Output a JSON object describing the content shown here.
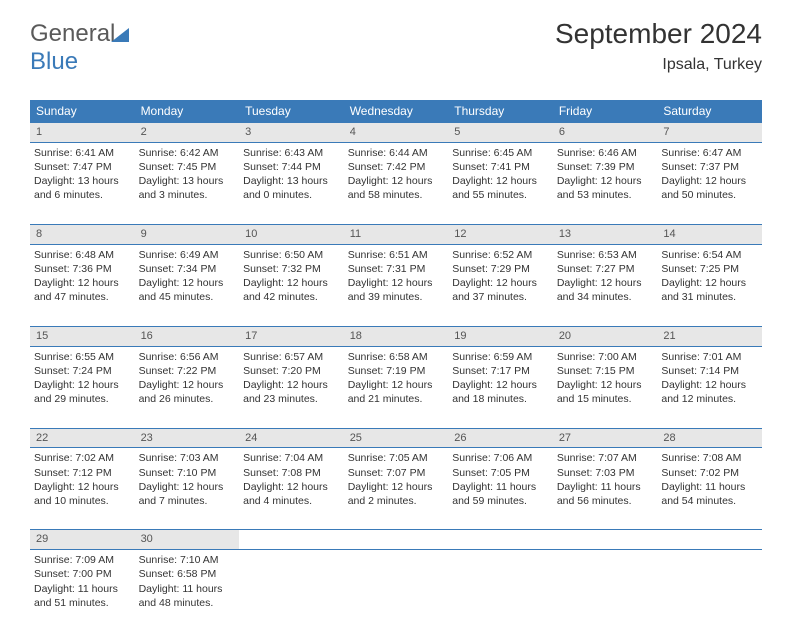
{
  "logo": {
    "part1": "General",
    "part2": "Blue"
  },
  "header": {
    "title": "September 2024",
    "location": "Ipsala, Turkey"
  },
  "colors": {
    "header_bg": "#3a7ab8",
    "header_text": "#ffffff",
    "daynum_bg": "#e7e7e7",
    "text": "#333333",
    "border": "#3a7ab8"
  },
  "fonts": {
    "title_size": 28,
    "location_size": 16,
    "th_size": 12,
    "cell_size": 10.5
  },
  "weekdays": [
    "Sunday",
    "Monday",
    "Tuesday",
    "Wednesday",
    "Thursday",
    "Friday",
    "Saturday"
  ],
  "weeks": [
    {
      "nums": [
        "1",
        "2",
        "3",
        "4",
        "5",
        "6",
        "7"
      ],
      "cells": [
        {
          "sunrise": "Sunrise: 6:41 AM",
          "sunset": "Sunset: 7:47 PM",
          "daylight": "Daylight: 13 hours and 6 minutes."
        },
        {
          "sunrise": "Sunrise: 6:42 AM",
          "sunset": "Sunset: 7:45 PM",
          "daylight": "Daylight: 13 hours and 3 minutes."
        },
        {
          "sunrise": "Sunrise: 6:43 AM",
          "sunset": "Sunset: 7:44 PM",
          "daylight": "Daylight: 13 hours and 0 minutes."
        },
        {
          "sunrise": "Sunrise: 6:44 AM",
          "sunset": "Sunset: 7:42 PM",
          "daylight": "Daylight: 12 hours and 58 minutes."
        },
        {
          "sunrise": "Sunrise: 6:45 AM",
          "sunset": "Sunset: 7:41 PM",
          "daylight": "Daylight: 12 hours and 55 minutes."
        },
        {
          "sunrise": "Sunrise: 6:46 AM",
          "sunset": "Sunset: 7:39 PM",
          "daylight": "Daylight: 12 hours and 53 minutes."
        },
        {
          "sunrise": "Sunrise: 6:47 AM",
          "sunset": "Sunset: 7:37 PM",
          "daylight": "Daylight: 12 hours and 50 minutes."
        }
      ]
    },
    {
      "nums": [
        "8",
        "9",
        "10",
        "11",
        "12",
        "13",
        "14"
      ],
      "cells": [
        {
          "sunrise": "Sunrise: 6:48 AM",
          "sunset": "Sunset: 7:36 PM",
          "daylight": "Daylight: 12 hours and 47 minutes."
        },
        {
          "sunrise": "Sunrise: 6:49 AM",
          "sunset": "Sunset: 7:34 PM",
          "daylight": "Daylight: 12 hours and 45 minutes."
        },
        {
          "sunrise": "Sunrise: 6:50 AM",
          "sunset": "Sunset: 7:32 PM",
          "daylight": "Daylight: 12 hours and 42 minutes."
        },
        {
          "sunrise": "Sunrise: 6:51 AM",
          "sunset": "Sunset: 7:31 PM",
          "daylight": "Daylight: 12 hours and 39 minutes."
        },
        {
          "sunrise": "Sunrise: 6:52 AM",
          "sunset": "Sunset: 7:29 PM",
          "daylight": "Daylight: 12 hours and 37 minutes."
        },
        {
          "sunrise": "Sunrise: 6:53 AM",
          "sunset": "Sunset: 7:27 PM",
          "daylight": "Daylight: 12 hours and 34 minutes."
        },
        {
          "sunrise": "Sunrise: 6:54 AM",
          "sunset": "Sunset: 7:25 PM",
          "daylight": "Daylight: 12 hours and 31 minutes."
        }
      ]
    },
    {
      "nums": [
        "15",
        "16",
        "17",
        "18",
        "19",
        "20",
        "21"
      ],
      "cells": [
        {
          "sunrise": "Sunrise: 6:55 AM",
          "sunset": "Sunset: 7:24 PM",
          "daylight": "Daylight: 12 hours and 29 minutes."
        },
        {
          "sunrise": "Sunrise: 6:56 AM",
          "sunset": "Sunset: 7:22 PM",
          "daylight": "Daylight: 12 hours and 26 minutes."
        },
        {
          "sunrise": "Sunrise: 6:57 AM",
          "sunset": "Sunset: 7:20 PM",
          "daylight": "Daylight: 12 hours and 23 minutes."
        },
        {
          "sunrise": "Sunrise: 6:58 AM",
          "sunset": "Sunset: 7:19 PM",
          "daylight": "Daylight: 12 hours and 21 minutes."
        },
        {
          "sunrise": "Sunrise: 6:59 AM",
          "sunset": "Sunset: 7:17 PM",
          "daylight": "Daylight: 12 hours and 18 minutes."
        },
        {
          "sunrise": "Sunrise: 7:00 AM",
          "sunset": "Sunset: 7:15 PM",
          "daylight": "Daylight: 12 hours and 15 minutes."
        },
        {
          "sunrise": "Sunrise: 7:01 AM",
          "sunset": "Sunset: 7:14 PM",
          "daylight": "Daylight: 12 hours and 12 minutes."
        }
      ]
    },
    {
      "nums": [
        "22",
        "23",
        "24",
        "25",
        "26",
        "27",
        "28"
      ],
      "cells": [
        {
          "sunrise": "Sunrise: 7:02 AM",
          "sunset": "Sunset: 7:12 PM",
          "daylight": "Daylight: 12 hours and 10 minutes."
        },
        {
          "sunrise": "Sunrise: 7:03 AM",
          "sunset": "Sunset: 7:10 PM",
          "daylight": "Daylight: 12 hours and 7 minutes."
        },
        {
          "sunrise": "Sunrise: 7:04 AM",
          "sunset": "Sunset: 7:08 PM",
          "daylight": "Daylight: 12 hours and 4 minutes."
        },
        {
          "sunrise": "Sunrise: 7:05 AM",
          "sunset": "Sunset: 7:07 PM",
          "daylight": "Daylight: 12 hours and 2 minutes."
        },
        {
          "sunrise": "Sunrise: 7:06 AM",
          "sunset": "Sunset: 7:05 PM",
          "daylight": "Daylight: 11 hours and 59 minutes."
        },
        {
          "sunrise": "Sunrise: 7:07 AM",
          "sunset": "Sunset: 7:03 PM",
          "daylight": "Daylight: 11 hours and 56 minutes."
        },
        {
          "sunrise": "Sunrise: 7:08 AM",
          "sunset": "Sunset: 7:02 PM",
          "daylight": "Daylight: 11 hours and 54 minutes."
        }
      ]
    },
    {
      "nums": [
        "29",
        "30",
        "",
        "",
        "",
        "",
        ""
      ],
      "cells": [
        {
          "sunrise": "Sunrise: 7:09 AM",
          "sunset": "Sunset: 7:00 PM",
          "daylight": "Daylight: 11 hours and 51 minutes."
        },
        {
          "sunrise": "Sunrise: 7:10 AM",
          "sunset": "Sunset: 6:58 PM",
          "daylight": "Daylight: 11 hours and 48 minutes."
        },
        null,
        null,
        null,
        null,
        null
      ]
    }
  ]
}
